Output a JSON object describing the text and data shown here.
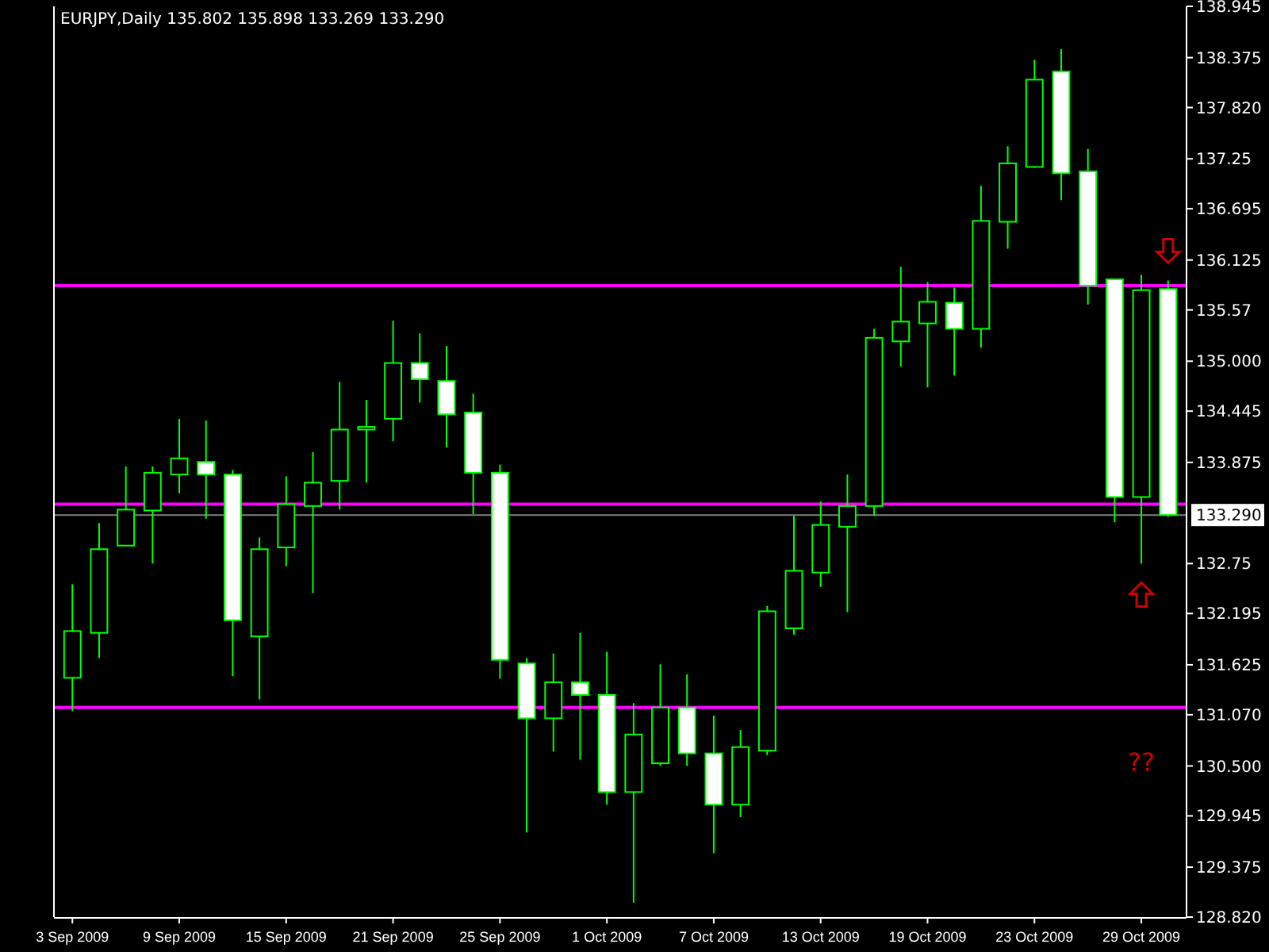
{
  "chart_data": {
    "type": "candlestick",
    "title": "EURJPY,Daily  135.802 135.898 133.269 133.290",
    "categories": [
      "3 Sep 2009",
      null,
      null,
      null,
      "9 Sep 2009",
      null,
      null,
      null,
      "15 Sep 2009",
      null,
      null,
      null,
      "21 Sep 2009",
      null,
      null,
      null,
      "25 Sep 2009",
      null,
      null,
      null,
      "1 Oct 2009",
      null,
      null,
      null,
      "7 Oct 2009",
      null,
      null,
      null,
      "13 Oct 2009",
      null,
      null,
      null,
      "19 Oct 2009",
      null,
      null,
      null,
      "23 Oct 2009",
      null,
      null,
      null,
      "29 Oct 2009",
      null
    ],
    "color": "#00ff00",
    "ohlc": [
      [
        131.48,
        132.52,
        131.11,
        132.0
      ],
      [
        131.98,
        133.2,
        131.7,
        132.91
      ],
      [
        132.95,
        133.83,
        132.95,
        133.35
      ],
      [
        133.34,
        133.83,
        132.75,
        133.76
      ],
      [
        133.74,
        134.36,
        133.53,
        133.92
      ],
      [
        133.88,
        134.34,
        133.25,
        133.74
      ],
      [
        133.74,
        133.79,
        131.5,
        132.12
      ],
      [
        131.94,
        133.04,
        131.24,
        132.91
      ],
      [
        132.93,
        133.72,
        132.72,
        133.41
      ],
      [
        133.39,
        133.99,
        132.42,
        133.65
      ],
      [
        133.67,
        134.77,
        133.35,
        134.24
      ],
      [
        134.24,
        134.57,
        133.65,
        134.27
      ],
      [
        134.36,
        135.45,
        134.11,
        134.98
      ],
      [
        134.98,
        135.31,
        134.54,
        134.8
      ],
      [
        134.78,
        135.17,
        134.04,
        134.41
      ],
      [
        134.43,
        134.64,
        133.3,
        133.76
      ],
      [
        133.76,
        133.85,
        131.47,
        131.68
      ],
      [
        131.64,
        131.7,
        129.76,
        131.03
      ],
      [
        131.03,
        131.75,
        130.66,
        131.43
      ],
      [
        131.43,
        131.98,
        130.57,
        131.29
      ],
      [
        131.29,
        131.77,
        130.07,
        130.21
      ],
      [
        130.21,
        131.2,
        128.98,
        130.85
      ],
      [
        130.53,
        131.63,
        130.5,
        131.15
      ],
      [
        131.15,
        131.52,
        130.5,
        130.64
      ],
      [
        130.64,
        131.06,
        129.53,
        130.07
      ],
      [
        130.07,
        130.9,
        129.93,
        130.71
      ],
      [
        130.67,
        132.28,
        130.62,
        132.22
      ],
      [
        132.03,
        133.28,
        131.96,
        132.67
      ],
      [
        132.65,
        133.44,
        132.49,
        133.18
      ],
      [
        133.16,
        133.74,
        132.21,
        133.39
      ],
      [
        133.39,
        135.36,
        133.28,
        135.26
      ],
      [
        135.22,
        136.05,
        134.94,
        135.44
      ],
      [
        135.42,
        135.88,
        134.71,
        135.66
      ],
      [
        135.65,
        135.82,
        134.84,
        135.36
      ],
      [
        135.36,
        136.95,
        135.15,
        136.56
      ],
      [
        136.55,
        137.39,
        136.25,
        137.2
      ],
      [
        137.16,
        138.35,
        137.15,
        138.13
      ],
      [
        138.22,
        138.47,
        136.79,
        137.09
      ],
      [
        137.11,
        137.36,
        135.63,
        135.84
      ],
      [
        135.91,
        135.91,
        133.21,
        133.49
      ],
      [
        133.49,
        135.96,
        132.75,
        135.79
      ],
      [
        135.802,
        135.898,
        133.269,
        133.29
      ]
    ],
    "ylim": [
      128.82,
      138.945
    ],
    "yticks": [
      138.945,
      138.375,
      {
        "value": 137.82,
        "label": "137.820"
      },
      137.25,
      136.695,
      136.125,
      135.57,
      {
        "value": 135,
        "label": "135.000"
      },
      134.445,
      133.875,
      132.75,
      132.195,
      131.625,
      {
        "value": 131.07,
        "label": "131.070"
      },
      {
        "value": 130.5,
        "label": "130.500"
      },
      129.945,
      129.375,
      {
        "value": 128.82,
        "label": "128.820"
      }
    ],
    "ref_lines": [
      {
        "axis": "y",
        "value": 135.84,
        "color": "#ff00ff"
      },
      {
        "axis": "y",
        "value": 133.41,
        "color": "#ff00ff"
      },
      {
        "axis": "y",
        "value": 131.15,
        "color": "#ff00ff"
      },
      {
        "axis": "y",
        "value": 133.29,
        "label": "133.290",
        "color": "#808080"
      }
    ],
    "annotations": [
      "??"
    ],
    "grid": false,
    "legend": false
  }
}
